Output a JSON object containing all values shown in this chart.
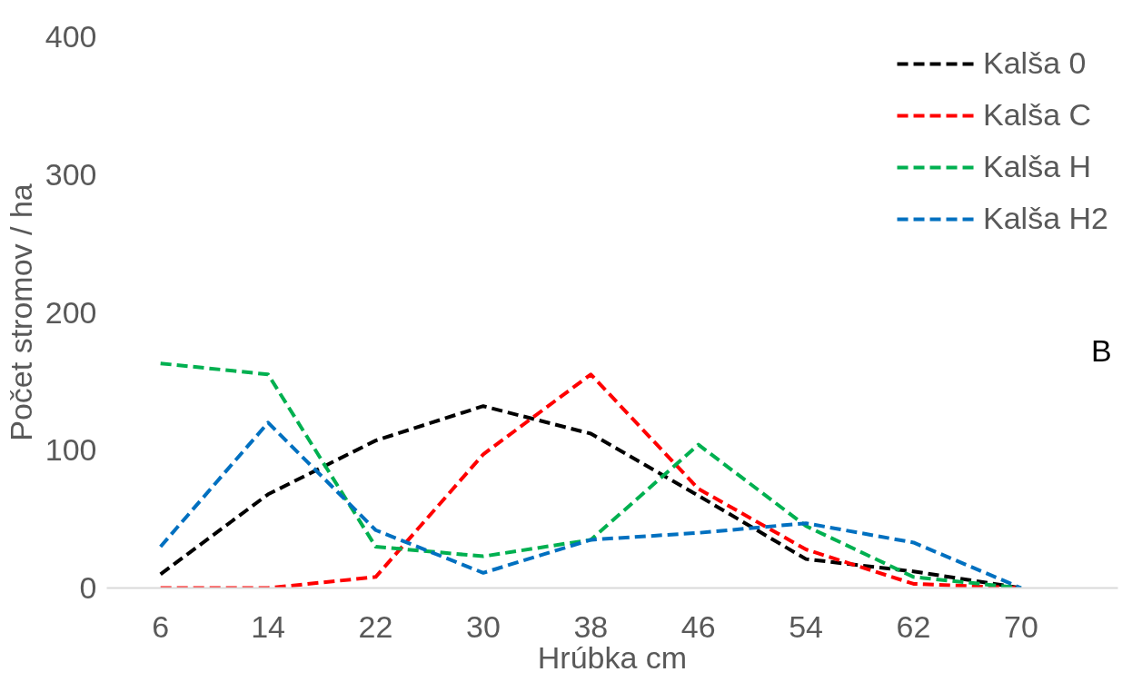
{
  "chart_data": {
    "type": "line",
    "xlabel": "Hrúbka cm",
    "ylabel": "Počet stromov / ha",
    "categories": [
      "6",
      "14",
      "22",
      "30",
      "38",
      "46",
      "54",
      "62",
      "70"
    ],
    "series": [
      {
        "name": "Kalša 0",
        "color": "#000000",
        "values": [
          10,
          68,
          107,
          132,
          112,
          67,
          21,
          12,
          0
        ]
      },
      {
        "name": "Kalša C",
        "color": "#ff0000",
        "values": [
          0,
          0,
          8,
          97,
          155,
          72,
          28,
          3,
          0
        ]
      },
      {
        "name": "Kalša H",
        "color": "#00b050",
        "values": [
          163,
          155,
          30,
          23,
          35,
          104,
          45,
          8,
          0
        ]
      },
      {
        "name": "Kalša H2",
        "color": "#0070c0",
        "values": [
          30,
          120,
          42,
          11,
          35,
          40,
          47,
          33,
          0
        ]
      }
    ],
    "ylim": [
      0,
      400
    ],
    "yticks": [
      0,
      100,
      200,
      300,
      400
    ],
    "annotations": [
      "B"
    ],
    "legend": "top right",
    "grid": false,
    "line_style": "dashed",
    "marker": "none"
  }
}
